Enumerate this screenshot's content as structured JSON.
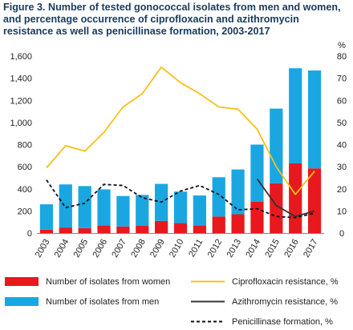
{
  "chart_data": {
    "title_lines": [
      "Figure 3. Number of tested gonococcal isolates from men and women,",
      "and percentage occurrence of ciprofloxacin and azithromycin",
      "resistance as well as penicillinase formation, 2003-2017"
    ],
    "type": "bar",
    "categories": [
      "2003",
      "2004",
      "2005",
      "2006",
      "2007",
      "2008",
      "2009",
      "2010",
      "2011",
      "2012",
      "2013",
      "2014",
      "2015",
      "2016",
      "2017"
    ],
    "y_left": {
      "lim": [
        0,
        1600
      ],
      "ticks": [
        0,
        200,
        400,
        600,
        800,
        1000,
        1200,
        1400,
        1600
      ],
      "tick_labels": [
        "0",
        "200",
        "400",
        "600",
        "800",
        "1,000",
        "1,200",
        "1,400",
        "1,600"
      ]
    },
    "y_right": {
      "label": "%",
      "lim": [
        0,
        80
      ],
      "ticks": [
        0,
        10,
        20,
        30,
        40,
        50,
        60,
        70,
        80
      ],
      "tick_labels": [
        "0",
        "10",
        "20",
        "30",
        "40",
        "50",
        "60",
        "70",
        "80"
      ]
    },
    "stacked_bars": [
      {
        "name": "Number of isolates from women",
        "color": "#e8191e",
        "values": [
          30,
          50,
          45,
          70,
          60,
          65,
          110,
          90,
          70,
          150,
          170,
          285,
          450,
          630,
          585
        ]
      },
      {
        "name": "Number of isolates from men",
        "color": "#1aa7e1",
        "values": [
          230,
          390,
          380,
          325,
          275,
          280,
          335,
          285,
          270,
          355,
          405,
          515,
          675,
          860,
          885
        ]
      }
    ],
    "lines": [
      {
        "name": "Ciprofloxacin resistance, %",
        "color": "#f5c11a",
        "style": "solid",
        "values": [
          29.5,
          39.5,
          37,
          45.5,
          57,
          63,
          75,
          68,
          63,
          57,
          56,
          47,
          30,
          17.5,
          28
        ]
      },
      {
        "name": "Azithromycin resistance, %",
        "color": "#333333",
        "style": "solid",
        "values": [
          null,
          null,
          null,
          null,
          null,
          null,
          null,
          null,
          null,
          null,
          null,
          24.5,
          12.5,
          7.5,
          10
        ]
      },
      {
        "name": "Penicillinase formation, %",
        "color": "#111111",
        "style": "dashed",
        "values": [
          24,
          11.5,
          13.5,
          22,
          21.5,
          16,
          14,
          19,
          21.5,
          17.5,
          10.5,
          11,
          7.5,
          7,
          9
        ]
      }
    ],
    "legend": {
      "placement": "bottom",
      "items": [
        {
          "label": "Number of isolates from women",
          "kind": "box",
          "color": "#e8191e"
        },
        {
          "label": "Ciprofloxacin resistance, %",
          "kind": "line",
          "color": "#f5c11a",
          "style": "solid"
        },
        {
          "label": "Number of isolates from men",
          "kind": "box",
          "color": "#1aa7e1"
        },
        {
          "label": "Azithromycin resistance, %",
          "kind": "line",
          "color": "#333333",
          "style": "solid"
        },
        {
          "label": "Penicillinase formation, %",
          "kind": "line",
          "color": "#111111",
          "style": "dashed"
        }
      ]
    },
    "grid": false
  }
}
